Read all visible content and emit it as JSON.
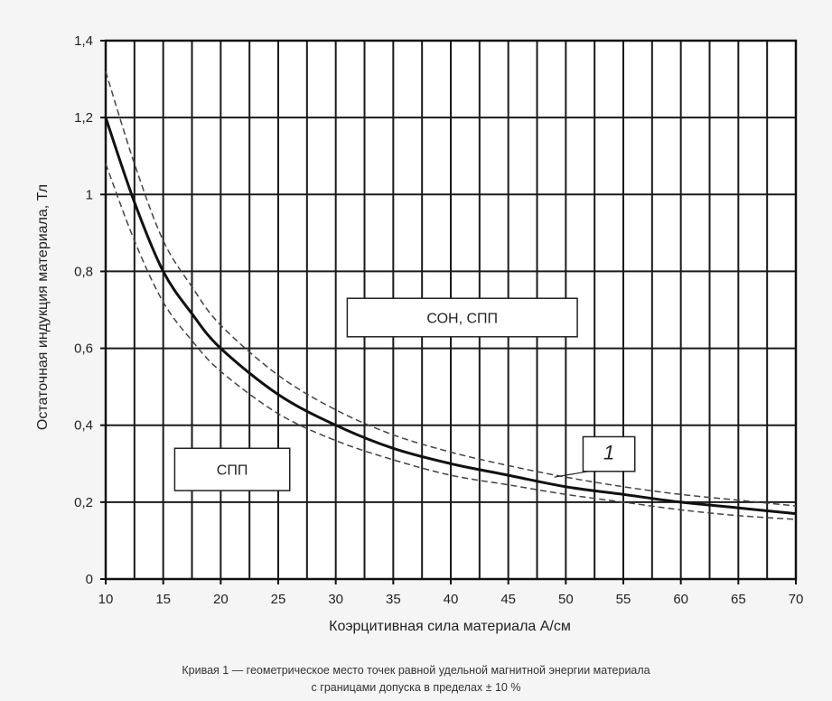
{
  "chart_data": {
    "type": "line",
    "xlabel": "Коэрцитивная сила материала  А/см",
    "ylabel": "Остаточная индукция материала, Тл",
    "xlim": [
      10,
      70
    ],
    "ylim": [
      0,
      1.4
    ],
    "x_ticks": [
      10,
      15,
      20,
      25,
      30,
      35,
      40,
      45,
      50,
      55,
      60,
      65,
      70
    ],
    "x_tick_labels": [
      "10",
      "15",
      "20",
      "25",
      "30",
      "35",
      "40",
      "45",
      "50",
      "55",
      "60",
      "65",
      "70"
    ],
    "y_ticks": [
      0,
      0.2,
      0.4,
      0.6,
      0.8,
      1.0,
      1.2,
      1.4
    ],
    "y_tick_labels": [
      "0",
      "0,2",
      "0,4",
      "0,6",
      "0,8",
      "1",
      "1,2",
      "1,4"
    ],
    "grid": true,
    "x_grid_step": 2.5,
    "y_grid_step": 0.2,
    "series": [
      {
        "style": "solid",
        "color": "#111111",
        "x": [
          10,
          12.5,
          15,
          17.5,
          20,
          25,
          30,
          35,
          40,
          45,
          50,
          55,
          60,
          65,
          70
        ],
        "y": [
          1.2,
          0.98,
          0.8,
          0.69,
          0.6,
          0.48,
          0.4,
          0.34,
          0.3,
          0.27,
          0.24,
          0.22,
          0.2,
          0.185,
          0.17
        ]
      },
      {
        "style": "dashed",
        "color": "#444444",
        "x": [
          10,
          12.5,
          15,
          17.5,
          20,
          25,
          30,
          35,
          40,
          45,
          50,
          55,
          60,
          65,
          70
        ],
        "y": [
          1.32,
          1.08,
          0.88,
          0.76,
          0.66,
          0.53,
          0.44,
          0.375,
          0.33,
          0.295,
          0.265,
          0.24,
          0.22,
          0.205,
          0.19
        ]
      },
      {
        "style": "dashed",
        "color": "#444444",
        "x": [
          10,
          12.5,
          15,
          17.5,
          20,
          25,
          30,
          35,
          40,
          45,
          50,
          55,
          60,
          65,
          70
        ],
        "y": [
          1.08,
          0.88,
          0.72,
          0.62,
          0.54,
          0.43,
          0.36,
          0.31,
          0.27,
          0.245,
          0.22,
          0.2,
          0.18,
          0.165,
          0.155
        ]
      }
    ],
    "annotations": {
      "region_upper": {
        "text": "СОН, СПП",
        "x": [
          31,
          51
        ],
        "y": [
          0.63,
          0.73
        ]
      },
      "region_lower": {
        "text": "СПП",
        "x": [
          16,
          26
        ],
        "y": [
          0.23,
          0.34
        ]
      },
      "curve_label": {
        "text": "1",
        "x": [
          51.5,
          56
        ],
        "y": [
          0.28,
          0.37
        ],
        "pointer_to": [
          49,
          0.265
        ]
      }
    }
  },
  "caption": {
    "line1": "Кривая 1 — геометрическое место точек равной удельной магнитной энергии материала",
    "line2": "с границами допуска в пределах ± 10 %"
  }
}
